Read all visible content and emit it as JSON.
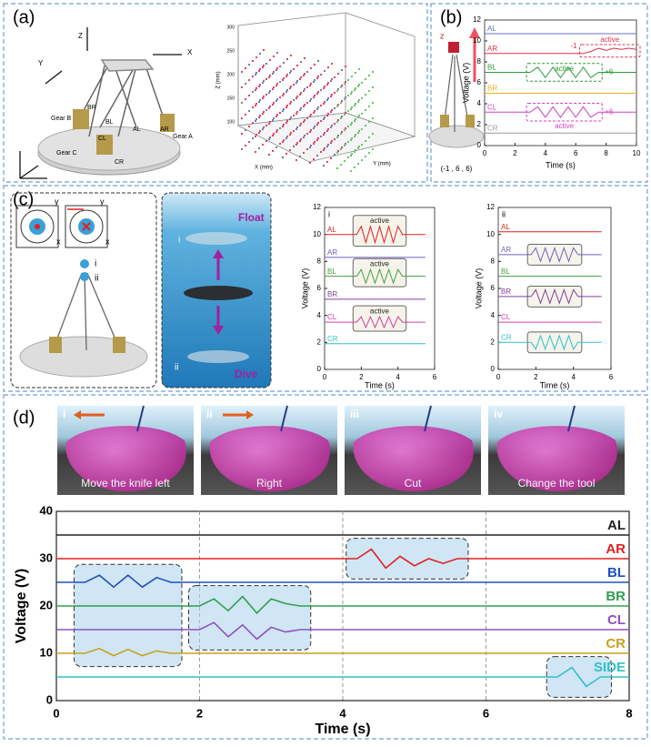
{
  "figure": {
    "a": {
      "label": "(a)",
      "axes": [
        "Z",
        "Y",
        "X"
      ],
      "parts": [
        "Gear B",
        "BR",
        "BL",
        "CL",
        "Gear C",
        "CR",
        "AL",
        "AR",
        "Gear A"
      ],
      "scatter_axes": [
        "Z (mm)",
        "X (mm)",
        "Y (mm)"
      ],
      "scatter_zticks": [
        300,
        250,
        200,
        150,
        100
      ]
    },
    "b": {
      "label": "(b)",
      "marker": "z",
      "coords": "(-1 , 6 , 6)"
    },
    "c": {
      "label": "(c)",
      "target_axes": [
        "y",
        "x",
        "y",
        "x"
      ],
      "robot_marks": [
        "i",
        "ii"
      ],
      "scene_marks": [
        "i",
        "ii"
      ],
      "actions": [
        "Float",
        "Dive"
      ]
    },
    "d": {
      "label": "(d)",
      "scenes": [
        {
          "num": "i",
          "caption": "Move the knife left"
        },
        {
          "num": "ii",
          "caption": "Right"
        },
        {
          "num": "iii",
          "caption": "Cut"
        },
        {
          "num": "iv",
          "caption": "Change the tool"
        }
      ]
    }
  },
  "chart_data": [
    {
      "type": "line",
      "xlabel": "Time (s)",
      "ylabel": "Voltage (V)",
      "xlim": [
        0,
        10
      ],
      "xticks": [
        0,
        2,
        4,
        6,
        8,
        10
      ],
      "ylim": [
        0,
        12
      ],
      "yticks": [
        0,
        2,
        4,
        6,
        8,
        10,
        12
      ],
      "x": [
        0,
        0.5,
        1,
        1.5,
        2,
        2.5,
        3,
        3.5,
        4,
        4.5,
        5,
        5.5,
        6,
        6.5,
        7,
        7.5,
        8,
        8.5,
        9,
        9.5,
        10
      ],
      "series": [
        {
          "name": "AL",
          "color": "#6a6fd0",
          "values": [
            10.7,
            10.7,
            10.7,
            10.7,
            10.7,
            10.7,
            10.7,
            10.7,
            10.7,
            10.7,
            10.7,
            10.7,
            10.7,
            10.7,
            10.7,
            10.7,
            10.7,
            10.7,
            10.7,
            10.7,
            10.7
          ]
        },
        {
          "name": "AR",
          "color": "#e0304a",
          "values": [
            8.8,
            8.8,
            8.8,
            8.8,
            8.8,
            8.8,
            8.8,
            8.8,
            8.8,
            8.8,
            8.8,
            8.8,
            8.8,
            8.8,
            9.0,
            9.3,
            9.1,
            9.3,
            9.2,
            9.3,
            9.2
          ]
        },
        {
          "name": "BL",
          "color": "#2a9d3a",
          "values": [
            7,
            7,
            7,
            7,
            7,
            7,
            7,
            7.5,
            6.5,
            7.5,
            6.5,
            7.5,
            6.5,
            7.5,
            6.5,
            7,
            7,
            7,
            7,
            7,
            7
          ]
        },
        {
          "name": "BR",
          "color": "#f0b020",
          "values": [
            5,
            5,
            5,
            5,
            5,
            5,
            5,
            5,
            5,
            5,
            5,
            5,
            5,
            5,
            5,
            5,
            5,
            5,
            5,
            5,
            5
          ]
        },
        {
          "name": "CL",
          "color": "#d040c0",
          "values": [
            3.2,
            3.2,
            3.2,
            3.2,
            3.2,
            3.2,
            3.2,
            3.7,
            2.7,
            3.7,
            2.7,
            3.7,
            2.7,
            3.7,
            2.7,
            3.2,
            3.2,
            3.2,
            3.2,
            3.2,
            3.2
          ]
        },
        {
          "name": "CR",
          "color": "#999999",
          "values": [
            1.2,
            1.2,
            1.2,
            1.2,
            1.2,
            1.2,
            1.2,
            1.2,
            1.2,
            1.2,
            1.2,
            1.2,
            1.2,
            1.2,
            1.2,
            1.2,
            1.2,
            1.2,
            1.2,
            1.2,
            1.2
          ]
        }
      ],
      "annotations": [
        "-1",
        "active",
        "active",
        "+6",
        "+6",
        "active"
      ]
    },
    {
      "type": "line",
      "label": "i",
      "xlabel": "Time (s)",
      "ylabel": "Voltage (V)",
      "xlim": [
        0,
        6
      ],
      "xticks": [
        0,
        2,
        4,
        6
      ],
      "ylim": [
        0,
        12
      ],
      "yticks": [
        0,
        2,
        4,
        6,
        8,
        10,
        12
      ],
      "x": [
        0,
        0.25,
        0.5,
        0.75,
        1,
        1.25,
        1.5,
        1.75,
        2,
        2.25,
        2.5,
        2.75,
        3,
        3.25,
        3.5,
        3.75,
        4,
        4.25,
        4.5,
        4.75,
        5,
        5.25,
        5.5
      ],
      "series": [
        {
          "name": "AL",
          "color": "#e02020",
          "values": [
            10,
            10,
            10,
            10,
            10,
            10,
            10,
            10,
            10.6,
            9.4,
            10.6,
            9.4,
            10.6,
            9.4,
            10.6,
            9.4,
            10.6,
            10,
            10,
            10,
            10,
            10,
            10
          ]
        },
        {
          "name": "AR",
          "color": "#7060c0",
          "values": [
            8.3,
            8.3,
            8.3,
            8.3,
            8.3,
            8.3,
            8.3,
            8.3,
            8.3,
            8.3,
            8.3,
            8.3,
            8.3,
            8.3,
            8.3,
            8.3,
            8.3,
            8.3,
            8.3,
            8.3,
            8.3,
            8.3,
            8.3
          ]
        },
        {
          "name": "BL",
          "color": "#40a040",
          "values": [
            6.9,
            6.9,
            6.9,
            6.9,
            6.9,
            6.9,
            6.9,
            6.9,
            7.4,
            6.4,
            7.4,
            6.4,
            7.4,
            6.4,
            7.4,
            6.4,
            7.4,
            6.9,
            6.9,
            6.9,
            6.9,
            6.9,
            6.9
          ]
        },
        {
          "name": "BR",
          "color": "#8040a0",
          "values": [
            5.2,
            5.2,
            5.2,
            5.2,
            5.2,
            5.2,
            5.2,
            5.2,
            5.2,
            5.2,
            5.2,
            5.2,
            5.2,
            5.2,
            5.2,
            5.2,
            5.2,
            5.2,
            5.2,
            5.2,
            5.2,
            5.2,
            5.2
          ]
        },
        {
          "name": "CL",
          "color": "#d040a0",
          "values": [
            3.5,
            3.5,
            3.5,
            3.5,
            3.5,
            3.5,
            3.5,
            3.5,
            3.9,
            3.1,
            3.9,
            3.1,
            3.9,
            3.1,
            3.9,
            3.1,
            3.9,
            3.5,
            3.5,
            3.5,
            3.5,
            3.5,
            3.5
          ]
        },
        {
          "name": "CR",
          "color": "#30c0d0",
          "values": [
            1.9,
            1.9,
            1.9,
            1.9,
            1.9,
            1.9,
            1.9,
            1.9,
            1.9,
            1.9,
            1.9,
            1.9,
            1.9,
            1.9,
            1.9,
            1.9,
            1.9,
            1.9,
            1.9,
            1.9,
            1.9,
            1.9,
            1.9
          ]
        }
      ],
      "annotations": [
        "active",
        "active",
        "active"
      ]
    },
    {
      "type": "line",
      "label": "ii",
      "xlabel": "Time (s)",
      "ylabel": "Voltage (V)",
      "xlim": [
        0,
        6
      ],
      "xticks": [
        0,
        2,
        4,
        6
      ],
      "ylim": [
        0,
        12
      ],
      "yticks": [
        0,
        2,
        4,
        6,
        8,
        10,
        12
      ],
      "x": [
        0,
        0.25,
        0.5,
        0.75,
        1,
        1.25,
        1.5,
        1.75,
        2,
        2.25,
        2.5,
        2.75,
        3,
        3.25,
        3.5,
        3.75,
        4,
        4.25,
        4.5,
        4.75,
        5,
        5.25,
        5.5
      ],
      "series": [
        {
          "name": "AL",
          "color": "#e02020",
          "values": [
            10.2,
            10.2,
            10.2,
            10.2,
            10.2,
            10.2,
            10.2,
            10.2,
            10.2,
            10.2,
            10.2,
            10.2,
            10.2,
            10.2,
            10.2,
            10.2,
            10.2,
            10.2,
            10.2,
            10.2,
            10.2,
            10.2,
            10.2
          ]
        },
        {
          "name": "AR",
          "color": "#7060c0",
          "values": [
            8.5,
            8.5,
            8.5,
            8.5,
            8.5,
            8.5,
            8.5,
            8.5,
            9.0,
            8.0,
            9.0,
            8.0,
            9.0,
            8.0,
            9.0,
            8.0,
            9.0,
            8.5,
            8.5,
            8.5,
            8.5,
            8.5,
            8.5
          ]
        },
        {
          "name": "BL",
          "color": "#40a040",
          "values": [
            6.9,
            6.9,
            6.9,
            6.9,
            6.9,
            6.9,
            6.9,
            6.9,
            6.9,
            6.9,
            6.9,
            6.9,
            6.9,
            6.9,
            6.9,
            6.9,
            6.9,
            6.9,
            6.9,
            6.9,
            6.9,
            6.9,
            6.9
          ]
        },
        {
          "name": "BR",
          "color": "#8040a0",
          "values": [
            5.4,
            5.4,
            5.4,
            5.4,
            5.4,
            5.4,
            5.4,
            5.4,
            5.9,
            4.9,
            5.9,
            4.9,
            5.9,
            4.9,
            5.9,
            4.9,
            5.9,
            5.4,
            5.4,
            5.4,
            5.4,
            5.4,
            5.4
          ]
        },
        {
          "name": "CL",
          "color": "#d040a0",
          "values": [
            3.5,
            3.5,
            3.5,
            3.5,
            3.5,
            3.5,
            3.5,
            3.5,
            3.5,
            3.5,
            3.5,
            3.5,
            3.5,
            3.5,
            3.5,
            3.5,
            3.5,
            3.5,
            3.5,
            3.5,
            3.5,
            3.5,
            3.5
          ]
        },
        {
          "name": "CR",
          "color": "#30c0d0",
          "values": [
            2.0,
            2.0,
            2.0,
            2.0,
            2.0,
            2.0,
            2.0,
            2.0,
            1.5,
            2.5,
            1.5,
            2.5,
            1.5,
            2.5,
            1.5,
            2.5,
            1.5,
            2.0,
            2.0,
            2.0,
            2.0,
            2.0,
            2.0
          ]
        }
      ]
    },
    {
      "type": "line",
      "xlabel": "Time (s)",
      "ylabel": "Voltage (V)",
      "xgrid": true,
      "xlim": [
        0,
        8
      ],
      "xticks": [
        0,
        2,
        4,
        6,
        8
      ],
      "ylim": [
        0,
        40
      ],
      "yticks": [
        0,
        10,
        20,
        30,
        40
      ],
      "x": [
        0,
        0.2,
        0.4,
        0.6,
        0.8,
        1,
        1.2,
        1.4,
        1.6,
        1.8,
        2,
        2.2,
        2.4,
        2.6,
        2.8,
        3,
        3.2,
        3.4,
        3.6,
        3.8,
        4,
        4.2,
        4.4,
        4.6,
        4.8,
        5,
        5.2,
        5.4,
        5.6,
        5.8,
        6,
        6.2,
        6.4,
        6.6,
        6.8,
        7,
        7.2,
        7.4,
        7.6,
        7.8,
        8
      ],
      "series": [
        {
          "name": "AL",
          "color": "#222222",
          "values": [
            35,
            35,
            35,
            35,
            35,
            35,
            35,
            35,
            35,
            35,
            35,
            35,
            35,
            35,
            35,
            35,
            35,
            35,
            35,
            35,
            35,
            35,
            35,
            35,
            35,
            35,
            35,
            35,
            35,
            35,
            35,
            35,
            35,
            35,
            35,
            35,
            35,
            35,
            35,
            35,
            35
          ]
        },
        {
          "name": "AR",
          "color": "#e02020",
          "values": [
            30,
            30,
            30,
            30,
            30,
            30,
            30,
            30,
            30,
            30,
            30,
            30,
            30,
            30,
            30,
            30,
            30,
            30,
            30,
            30,
            30,
            30,
            32,
            28,
            30.5,
            28.5,
            30,
            29,
            30,
            30,
            30,
            30,
            30,
            30,
            30,
            30,
            30,
            30,
            30,
            30,
            30
          ]
        },
        {
          "name": "BL",
          "color": "#2050c0",
          "values": [
            25,
            25,
            25,
            26.5,
            24,
            26.5,
            24,
            26,
            25,
            25,
            25,
            25,
            25,
            25,
            25,
            25,
            25,
            25,
            25,
            25,
            25,
            25,
            25,
            25,
            25,
            25,
            25,
            25,
            25,
            25,
            25,
            25,
            25,
            25,
            25,
            25,
            25,
            25,
            25,
            25,
            25
          ]
        },
        {
          "name": "BR",
          "color": "#30a050",
          "values": [
            20,
            20,
            20,
            20,
            20,
            20,
            20,
            20,
            20,
            20,
            20,
            21.5,
            19,
            22,
            18.5,
            21.5,
            20.5,
            20,
            20,
            20,
            20,
            20,
            20,
            20,
            20,
            20,
            20,
            20,
            20,
            20,
            20,
            20,
            20,
            20,
            20,
            20,
            20,
            20,
            20,
            20,
            20
          ]
        },
        {
          "name": "CL",
          "color": "#9050c0",
          "values": [
            15,
            15,
            15,
            15,
            15,
            15,
            15,
            15,
            15,
            15,
            15,
            16.5,
            13.5,
            16,
            13,
            15.5,
            14.5,
            15,
            15,
            15,
            15,
            15,
            15,
            15,
            15,
            15,
            15,
            15,
            15,
            15,
            15,
            15,
            15,
            15,
            15,
            15,
            15,
            15,
            15,
            15,
            15
          ]
        },
        {
          "name": "CR",
          "color": "#c8a020",
          "values": [
            10,
            10,
            10,
            11,
            9.5,
            10.8,
            9.5,
            10.5,
            10,
            10,
            10,
            10,
            10,
            10,
            10,
            10,
            10,
            10,
            10,
            10,
            10,
            10,
            10,
            10,
            10,
            10,
            10,
            10,
            10,
            10,
            10,
            10,
            10,
            10,
            10,
            10,
            10,
            10,
            10,
            10,
            10
          ]
        },
        {
          "name": "SIDE",
          "color": "#30c0c8",
          "values": [
            5,
            5,
            5,
            5,
            5,
            5,
            5,
            5,
            5,
            5,
            5,
            5,
            5,
            5,
            5,
            5,
            5,
            5,
            5,
            5,
            5,
            5,
            5,
            5,
            5,
            5,
            5,
            5,
            5,
            5,
            5,
            5,
            5,
            5,
            5,
            5,
            7,
            3,
            5,
            5,
            5
          ]
        }
      ]
    }
  ]
}
